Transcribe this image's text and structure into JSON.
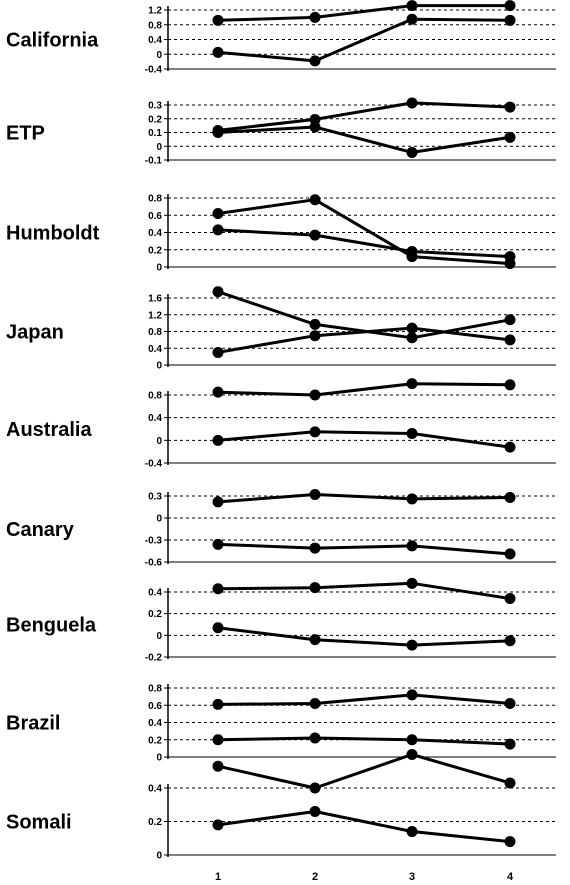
{
  "chart_data": {
    "type": "line",
    "x_categories": [
      "1",
      "2",
      "3",
      "4"
    ],
    "panels": [
      {
        "name": "California",
        "yticks": [
          "1.2",
          "0.8",
          "0.4",
          "0",
          "-0.4"
        ],
        "ylim": [
          -0.4,
          1.2
        ],
        "series": [
          {
            "values": [
              0.92,
              1.0,
              1.32,
              1.32
            ]
          },
          {
            "values": [
              0.05,
              -0.18,
              0.95,
              0.92
            ]
          }
        ]
      },
      {
        "name": "ETP",
        "yticks": [
          "0.3",
          "0.2",
          "0.1",
          "0",
          "-0.1"
        ],
        "ylim": [
          -0.1,
          0.3
        ],
        "series": [
          {
            "values": [
              0.115,
              0.195,
              0.315,
              0.285
            ]
          },
          {
            "values": [
              0.1,
              0.14,
              -0.045,
              0.065
            ]
          }
        ]
      },
      {
        "name": "Humboldt",
        "yticks": [
          "0.8",
          "0.6",
          "0.4",
          "0.2",
          "0"
        ],
        "ylim": [
          0,
          0.8
        ],
        "series": [
          {
            "values": [
              0.62,
              0.78,
              0.12,
              0.04
            ]
          },
          {
            "values": [
              0.43,
              0.37,
              0.18,
              0.12
            ]
          }
        ]
      },
      {
        "name": "Japan",
        "yticks": [
          "1.6",
          "1.2",
          "0.8",
          "0.4",
          "0"
        ],
        "ylim": [
          0,
          1.6
        ],
        "series": [
          {
            "values": [
              1.75,
              0.97,
              0.65,
              1.08
            ]
          },
          {
            "values": [
              0.3,
              0.7,
              0.88,
              0.6
            ]
          }
        ]
      },
      {
        "name": "Australia",
        "yticks": [
          "0.8",
          "0.4",
          "0",
          "-0.4"
        ],
        "ylim": [
          -0.4,
          0.8
        ],
        "series": [
          {
            "values": [
              0.85,
              0.8,
              1.0,
              0.98
            ]
          },
          {
            "values": [
              0.0,
              0.15,
              0.12,
              -0.12
            ]
          }
        ]
      },
      {
        "name": "Canary",
        "yticks": [
          "0.3",
          "0",
          "-0.3",
          "-0.6"
        ],
        "ylim": [
          -0.6,
          0.3
        ],
        "series": [
          {
            "values": [
              0.22,
              0.32,
              0.26,
              0.28
            ]
          },
          {
            "values": [
              -0.36,
              -0.41,
              -0.38,
              -0.49
            ]
          }
        ]
      },
      {
        "name": "Benguela",
        "yticks": [
          "0.4",
          "0.2",
          "0",
          "-0.2"
        ],
        "ylim": [
          -0.2,
          0.4
        ],
        "series": [
          {
            "values": [
              0.43,
              0.44,
              0.48,
              0.34
            ]
          },
          {
            "values": [
              0.07,
              -0.04,
              -0.09,
              -0.05
            ]
          }
        ]
      },
      {
        "name": "Brazil",
        "yticks": [
          "0.8",
          "0.6",
          "0.4",
          "0.2",
          "0"
        ],
        "ylim": [
          0,
          0.8
        ],
        "series": [
          {
            "values": [
              0.61,
              0.62,
              0.72,
              0.62
            ]
          },
          {
            "values": [
              0.2,
              0.22,
              0.2,
              0.15
            ]
          }
        ]
      },
      {
        "name": "Somali",
        "yticks": [
          "0.4",
          "0.2",
          "0"
        ],
        "ylim": [
          0,
          0.4
        ],
        "series": [
          {
            "values": [
              0.53,
              0.4,
              0.6,
              0.43
            ]
          },
          {
            "values": [
              0.18,
              0.26,
              0.14,
              0.08
            ]
          }
        ]
      }
    ]
  }
}
